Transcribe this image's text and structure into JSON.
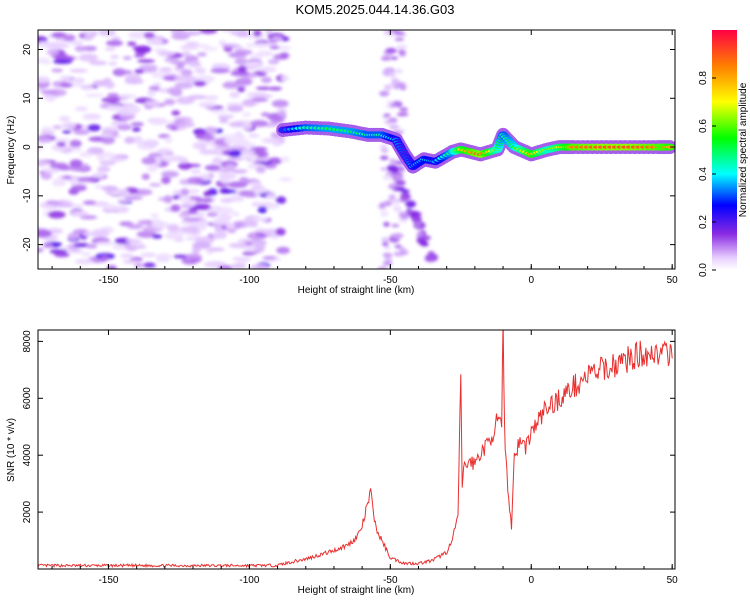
{
  "title": "KOM5.2025.044.14.36.G03",
  "chart_data": [
    {
      "type": "heatmap",
      "xlabel": "Height of straight line (km)",
      "ylabel": "Frequency (Hz)",
      "xlim": [
        -175,
        51
      ],
      "ylim": [
        -25,
        24
      ],
      "xticks": [
        "-150",
        "-100",
        "-50",
        "0",
        "50"
      ],
      "yticks": [
        "20",
        "10",
        "0",
        "-10",
        "-20"
      ],
      "colorbar": {
        "label": "Normalized spectral amplitude",
        "ticks": [
          "0.0",
          "0.2",
          "0.4",
          "0.6",
          "0.8"
        ],
        "range": [
          0,
          1
        ]
      },
      "ridge": [
        {
          "x": -88,
          "y": 3.5,
          "v": 0.3
        },
        {
          "x": -80,
          "y": 4,
          "v": 0.45
        },
        {
          "x": -72,
          "y": 3.8,
          "v": 0.5
        },
        {
          "x": -64,
          "y": 3.2,
          "v": 0.5
        },
        {
          "x": -58,
          "y": 2.5,
          "v": 0.45
        },
        {
          "x": -53,
          "y": 2.5,
          "v": 0.45
        },
        {
          "x": -48,
          "y": 1.5,
          "v": 0.35
        },
        {
          "x": -45,
          "y": -1.5,
          "v": 0.3
        },
        {
          "x": -42,
          "y": -4,
          "v": 0.35
        },
        {
          "x": -38,
          "y": -2.5,
          "v": 0.4
        },
        {
          "x": -34,
          "y": -3,
          "v": 0.35
        },
        {
          "x": -28,
          "y": -1,
          "v": 0.5
        },
        {
          "x": -25,
          "y": -0.5,
          "v": 0.75
        },
        {
          "x": -18,
          "y": -1.5,
          "v": 0.9
        },
        {
          "x": -12,
          "y": -0.5,
          "v": 0.6
        },
        {
          "x": -10,
          "y": 2.5,
          "v": 0.45
        },
        {
          "x": -6,
          "y": 0,
          "v": 0.55
        },
        {
          "x": 0,
          "y": -1.5,
          "v": 0.8
        },
        {
          "x": 6,
          "y": -0.5,
          "v": 0.6
        },
        {
          "x": 10,
          "y": 0,
          "v": 0.7
        },
        {
          "x": 15,
          "y": 0,
          "v": 0.85
        },
        {
          "x": 25,
          "y": 0,
          "v": 0.9
        },
        {
          "x": 35,
          "y": 0,
          "v": 0.9
        },
        {
          "x": 45,
          "y": 0,
          "v": 0.85
        },
        {
          "x": 50,
          "y": 0,
          "v": 0.8
        }
      ]
    },
    {
      "type": "line",
      "xlabel": "Height of straight line (km)",
      "ylabel": "SNR (10 * v/v)",
      "xlim": [
        -175,
        51
      ],
      "ylim": [
        0,
        8400
      ],
      "xticks": [
        "-150",
        "-100",
        "-50",
        "0",
        "50"
      ],
      "yticks": [
        "2000",
        "4000",
        "6000",
        "8000"
      ],
      "color": "#e8302f",
      "series": [
        {
          "x": [
            -175,
            -150,
            -125,
            -100,
            -90,
            -85,
            -80,
            -75,
            -70,
            -65,
            -62,
            -60,
            -58,
            -57,
            -56,
            -55,
            -52,
            -50,
            -45,
            -40,
            -35,
            -30,
            -28,
            -26,
            -25,
            -24.5,
            -24,
            -22,
            -20,
            -18,
            -16,
            -14,
            -12,
            -10.5,
            -10,
            -9.5,
            -9,
            -8,
            -7,
            -6,
            -4,
            -2,
            0,
            5,
            10,
            15,
            20,
            25,
            30,
            35,
            40,
            45,
            50
          ],
          "y": [
            120,
            120,
            120,
            120,
            130,
            250,
            350,
            500,
            650,
            850,
            1100,
            1500,
            2300,
            2700,
            2000,
            1400,
            800,
            400,
            200,
            200,
            300,
            600,
            1000,
            1900,
            6500,
            3000,
            3500,
            3800,
            3700,
            4100,
            4300,
            4700,
            5200,
            5000,
            8400,
            5200,
            3800,
            2500,
            1500,
            4000,
            4500,
            4300,
            4800,
            5600,
            6000,
            6400,
            6800,
            7000,
            7200,
            7400,
            7600,
            7600,
            7400
          ]
        }
      ]
    }
  ]
}
